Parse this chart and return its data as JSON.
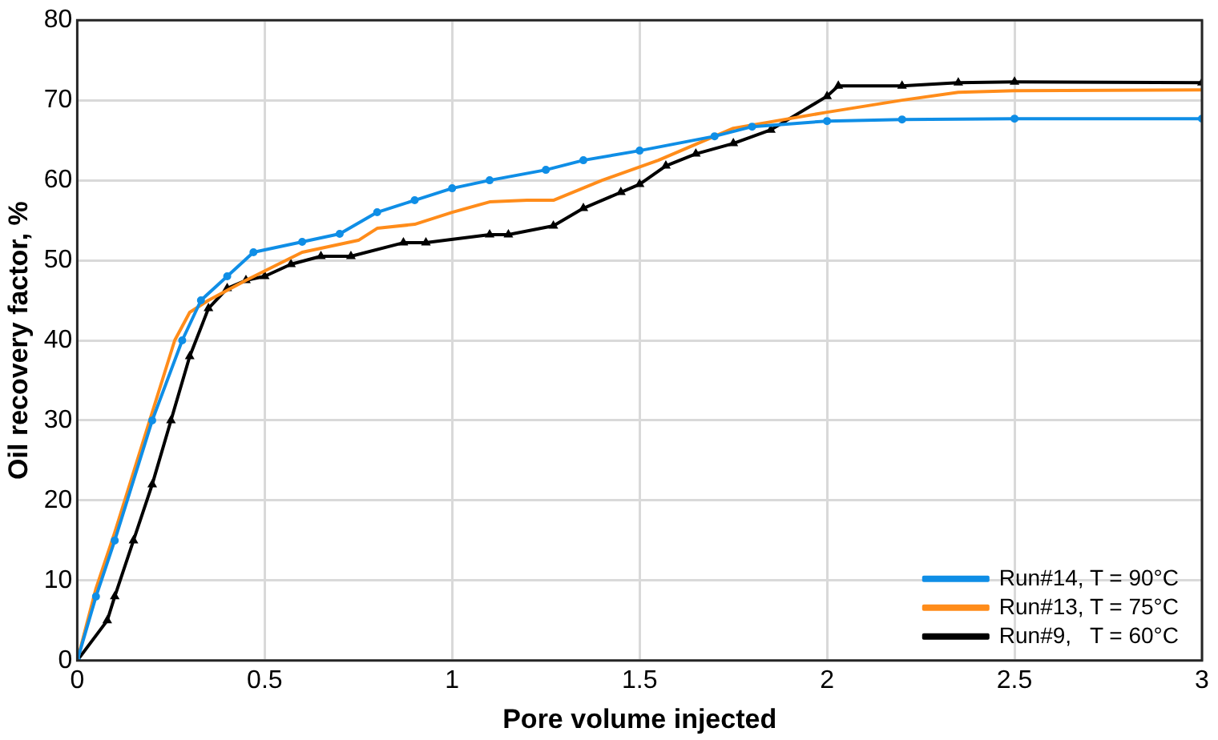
{
  "chart_data": {
    "type": "line",
    "xlabel": "Pore volume injected",
    "ylabel": "Oil recovery factor, %",
    "xlim": [
      0,
      3
    ],
    "xticks": [
      0,
      0.5,
      1,
      1.5,
      2,
      2.5,
      3
    ],
    "ylim": [
      0,
      80
    ],
    "yticks": [
      0,
      10,
      20,
      30,
      40,
      50,
      60,
      70,
      80
    ],
    "grid": true,
    "legend": "bottom right",
    "line_style": "solid",
    "series": [
      {
        "name": "Run#14, T = 90°C",
        "color": "#0f8ee6",
        "marker": "circle",
        "x": [
          0,
          0.05,
          0.1,
          0.2,
          0.28,
          0.33,
          0.4,
          0.47,
          0.6,
          0.7,
          0.8,
          0.9,
          1,
          1.1,
          1.25,
          1.35,
          1.5,
          1.7,
          1.8,
          2,
          2.2,
          2.5,
          3
        ],
        "values": [
          0,
          8,
          15,
          30,
          40,
          45,
          48,
          51,
          52.3,
          53.3,
          56,
          57.5,
          59,
          60,
          61.3,
          62.5,
          63.7,
          65.5,
          66.7,
          67.4,
          67.6,
          67.7,
          67.7
        ]
      },
      {
        "name": "Run#13, T = 75°C",
        "color": "#ff8c1a",
        "marker": "none",
        "x": [
          0,
          0.05,
          0.1,
          0.2,
          0.26,
          0.3,
          0.35,
          0.45,
          0.6,
          0.75,
          0.8,
          0.9,
          1,
          1.1,
          1.2,
          1.27,
          1.4,
          1.55,
          1.75,
          2,
          2.2,
          2.35,
          2.5,
          3
        ],
        "values": [
          0,
          9,
          16,
          31,
          40,
          43.5,
          45,
          47.5,
          51,
          52.5,
          54,
          54.5,
          56,
          57.3,
          57.5,
          57.5,
          60,
          62.5,
          66.5,
          68.5,
          70,
          71,
          71.2,
          71.3
        ]
      },
      {
        "name": "Run#9,   T = 60°C",
        "color": "#000000",
        "marker": "triangle",
        "x": [
          0,
          0.08,
          0.1,
          0.15,
          0.2,
          0.25,
          0.3,
          0.35,
          0.4,
          0.45,
          0.5,
          0.57,
          0.65,
          0.73,
          0.87,
          0.93,
          1.1,
          1.15,
          1.27,
          1.35,
          1.45,
          1.5,
          1.57,
          1.65,
          1.75,
          1.85,
          2,
          2.03,
          2.2,
          2.35,
          2.5,
          3
        ],
        "values": [
          0,
          5,
          8,
          15,
          22,
          30,
          38,
          44,
          46.5,
          47.5,
          48,
          49.5,
          50.5,
          50.5,
          52.2,
          52.2,
          53.2,
          53.2,
          54.3,
          56.5,
          58.5,
          59.5,
          61.8,
          63.3,
          64.6,
          66.3,
          70.5,
          71.8,
          71.8,
          72.2,
          72.3,
          72.2
        ]
      }
    ]
  }
}
